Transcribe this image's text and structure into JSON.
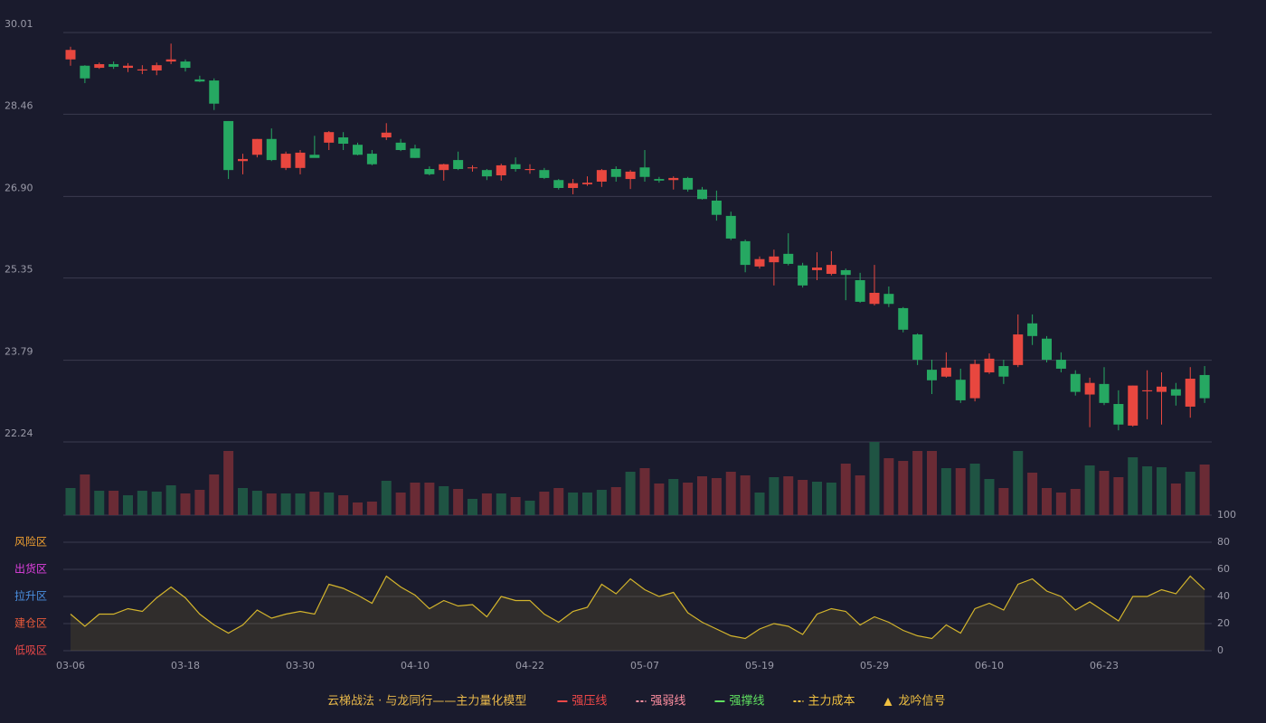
{
  "chart_data": {
    "type": "candlestick",
    "title": "云梯战法 · 与龙同行——主力量化模型",
    "categories": [
      "03-06",
      null,
      null,
      null,
      null,
      null,
      null,
      null,
      "03-18",
      null,
      null,
      null,
      null,
      null,
      null,
      null,
      "03-30",
      null,
      null,
      null,
      null,
      null,
      null,
      null,
      "04-10",
      null,
      null,
      null,
      null,
      null,
      null,
      null,
      "04-22",
      null,
      null,
      null,
      null,
      null,
      null,
      null,
      "05-07",
      null,
      null,
      null,
      null,
      null,
      null,
      null,
      "05-19",
      null,
      null,
      null,
      null,
      null,
      null,
      null,
      "05-29",
      null,
      null,
      null,
      null,
      null,
      null,
      null,
      "06-10",
      null,
      null,
      null,
      null,
      null,
      null,
      null,
      "06-23",
      null,
      null,
      null,
      null,
      null,
      null,
      null
    ],
    "open": [
      29.5,
      29.38,
      29.34,
      29.41,
      29.34,
      29.29,
      29.29,
      29.46,
      29.46,
      29.12,
      29.1,
      28.33,
      27.57,
      27.69,
      27.99,
      27.44,
      27.44,
      27.69,
      27.92,
      28.02,
      27.88,
      27.71,
      28.02,
      27.92,
      27.81,
      27.42,
      27.4,
      27.59,
      27.44,
      27.4,
      27.3,
      27.51,
      27.4,
      27.4,
      27.21,
      27.06,
      27.13,
      27.18,
      27.42,
      27.23,
      27.45,
      27.23,
      27.21,
      27.25,
      27.03,
      26.82,
      26.53,
      26.05,
      25.57,
      25.65,
      25.81,
      25.59,
      25.5,
      25.43,
      25.5,
      25.31,
      24.86,
      25.05,
      24.78,
      24.28,
      23.61,
      23.48,
      23.42,
      23.07,
      23.56,
      23.68,
      23.7,
      24.49,
      24.2,
      23.8,
      23.53,
      23.14,
      23.34,
      22.96,
      22.55,
      23.2,
      23.19,
      23.24,
      22.91,
      23.51
    ],
    "high": [
      29.74,
      29.39,
      29.44,
      29.46,
      29.43,
      29.39,
      29.44,
      29.8,
      29.5,
      29.19,
      29.14,
      28.33,
      27.71,
      27.99,
      28.19,
      27.75,
      27.78,
      28.05,
      28.14,
      28.12,
      27.92,
      27.78,
      28.29,
      27.99,
      27.88,
      27.47,
      27.52,
      27.75,
      27.49,
      27.42,
      27.52,
      27.64,
      27.51,
      27.44,
      27.23,
      27.23,
      27.28,
      27.42,
      27.47,
      27.4,
      27.78,
      27.27,
      27.28,
      27.27,
      27.08,
      27.01,
      26.61,
      26.08,
      25.76,
      25.89,
      26.2,
      25.64,
      25.84,
      25.86,
      25.53,
      25.45,
      25.6,
      25.19,
      24.8,
      24.3,
      23.8,
      23.94,
      23.63,
      23.8,
      23.92,
      23.8,
      24.66,
      24.66,
      24.25,
      23.94,
      23.6,
      23.46,
      23.66,
      23.22,
      23.31,
      23.6,
      23.56,
      23.36,
      23.66,
      23.68
    ],
    "low": [
      29.38,
      29.05,
      29.32,
      29.32,
      29.26,
      29.22,
      29.2,
      29.41,
      29.27,
      29.07,
      28.54,
      27.23,
      27.32,
      27.64,
      27.57,
      27.4,
      27.32,
      27.64,
      27.78,
      27.78,
      27.68,
      27.49,
      27.97,
      27.76,
      27.63,
      27.3,
      27.2,
      27.4,
      27.37,
      27.21,
      27.2,
      27.37,
      27.33,
      27.23,
      27.03,
      26.94,
      27.1,
      27.08,
      27.18,
      27.04,
      27.18,
      27.16,
      27.03,
      26.99,
      26.84,
      26.44,
      26.07,
      25.46,
      25.53,
      25.21,
      25.59,
      25.17,
      25.31,
      25.4,
      24.93,
      24.88,
      24.83,
      24.8,
      24.32,
      23.7,
      23.15,
      23.46,
      22.98,
      23.01,
      23.53,
      23.34,
      23.66,
      24.08,
      23.75,
      23.56,
      23.12,
      22.52,
      22.94,
      22.46,
      22.53,
      22.67,
      22.57,
      22.93,
      22.7,
      22.98
    ],
    "close": [
      29.68,
      29.14,
      29.41,
      29.36,
      29.38,
      29.31,
      29.39,
      29.5,
      29.34,
      29.08,
      28.66,
      27.4,
      27.61,
      27.99,
      27.59,
      27.71,
      27.73,
      27.63,
      28.12,
      27.9,
      27.69,
      27.51,
      28.11,
      27.78,
      27.63,
      27.32,
      27.51,
      27.42,
      27.45,
      27.28,
      27.49,
      27.42,
      27.42,
      27.25,
      27.06,
      27.15,
      27.16,
      27.4,
      27.27,
      27.37,
      27.27,
      27.2,
      27.25,
      27.03,
      26.85,
      26.55,
      26.1,
      25.6,
      25.71,
      25.76,
      25.62,
      25.21,
      25.55,
      25.6,
      25.41,
      24.9,
      25.07,
      24.86,
      24.37,
      23.8,
      23.41,
      23.65,
      23.03,
      23.72,
      23.82,
      23.48,
      24.28,
      24.25,
      23.8,
      23.63,
      23.19,
      23.36,
      22.98,
      22.57,
      23.31,
      23.22,
      23.29,
      23.12,
      23.44,
      23.07
    ],
    "up_color": "#e8473f",
    "down_color": "#26a862",
    "ylim": [
      22.24,
      30.01
    ],
    "yticks": [
      22.24,
      23.79,
      25.35,
      {
        "value": 26.9,
        "label": "26.90"
      },
      28.46,
      30.01
    ],
    "grid": true,
    "volume": {
      "values": [
        30,
        45,
        27,
        27,
        22,
        27,
        26,
        33,
        24,
        28,
        45,
        71,
        30,
        27,
        24,
        24,
        24,
        26,
        25,
        22,
        14,
        15,
        38,
        25,
        36,
        36,
        32,
        29,
        18,
        24,
        24,
        20,
        16,
        26,
        30,
        25,
        25,
        28,
        31,
        48,
        52,
        35,
        40,
        36,
        43,
        41,
        48,
        44,
        25,
        42,
        43,
        39,
        37,
        36,
        57,
        44,
        81,
        63,
        60,
        71,
        71,
        52,
        52,
        57,
        40,
        30,
        71,
        47,
        30,
        25,
        29,
        55,
        49,
        42,
        64,
        54,
        53,
        35,
        48,
        56
      ],
      "ylim": [
        0,
        81
      ],
      "up_color": "#1f5443",
      "down_color": "#6a2b35"
    },
    "oscillator": {
      "values": [
        27,
        18,
        27,
        27,
        31,
        29,
        39,
        47,
        39,
        27,
        19,
        13,
        19,
        30,
        24,
        27,
        29,
        27,
        49,
        46,
        41,
        35,
        55,
        47,
        41,
        31,
        37,
        33,
        34,
        25,
        40,
        37,
        37,
        27,
        21,
        29,
        32,
        49,
        42,
        53,
        45,
        40,
        43,
        28,
        21,
        16,
        11,
        9,
        16,
        20,
        18,
        12,
        27,
        31,
        29,
        19,
        25,
        21,
        15,
        11,
        9,
        19,
        13,
        31,
        35,
        30,
        49,
        53,
        44,
        40,
        30,
        36,
        29,
        22,
        40,
        40,
        45,
        42,
        55,
        45
      ],
      "color": "#d4b52c",
      "ylim": [
        0,
        100
      ],
      "yticks": [
        0,
        20,
        40,
        60,
        80,
        100
      ],
      "ytick_colors": [
        "#e84848",
        "#f0a030",
        "#4a8fe0",
        "#e040e0",
        "#f0a030",
        "#33cc55"
      ],
      "zones": [
        {
          "label": "低吸区",
          "value": 0,
          "color": "#e84848"
        },
        {
          "label": "建仓区",
          "value": 20,
          "color": "#e85a3a"
        },
        {
          "label": "拉升区",
          "value": 40,
          "color": "#4a8fe0"
        },
        {
          "label": "出货区",
          "value": 60,
          "color": "#e040e0"
        },
        {
          "label": "风险区",
          "value": 80,
          "color": "#f0a030"
        }
      ]
    },
    "title_color": "#e8b84a",
    "legend": [
      {
        "name": "强压线",
        "color": "#f04848",
        "style": "solid"
      },
      {
        "name": "强弱线",
        "color": "#ff8fa0",
        "style": "dashed"
      },
      {
        "name": "强撑线",
        "color": "#5fe05f",
        "style": "solid"
      },
      {
        "name": "主力成本",
        "color": "#f0c040",
        "style": "dashed"
      },
      {
        "name": "龙吟信号",
        "color": "#f0c040",
        "style": "triangle"
      }
    ]
  }
}
